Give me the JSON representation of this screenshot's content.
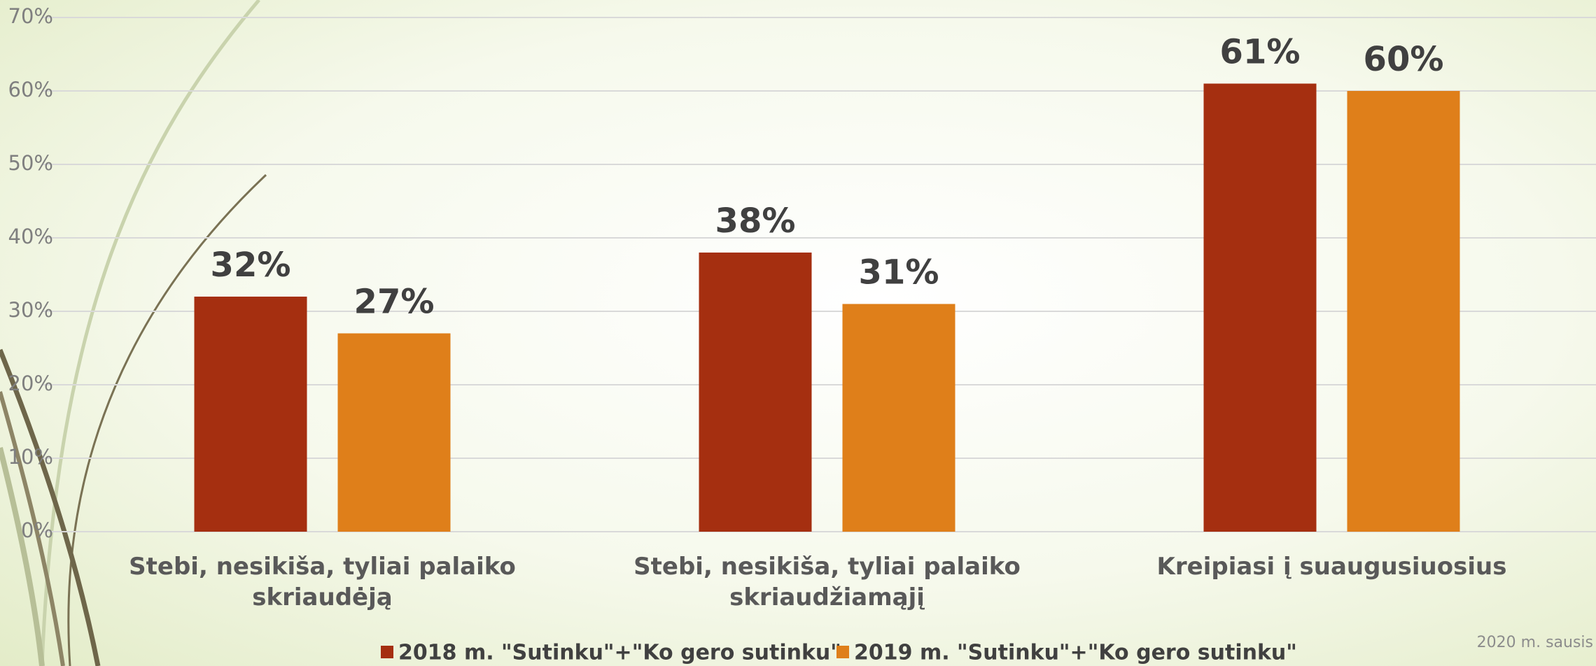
{
  "chart_data": {
    "type": "bar",
    "categories": [
      "Stebi, nesikiša, tyliai palaiko skriaudėją",
      "Stebi, nesikiša, tyliai palaiko skriaudžiamąjį",
      "Kreipiasi į suaugusiuosius"
    ],
    "series": [
      {
        "name": "2018 m. \"Sutinku\"+\"Ko gero sutinku\"",
        "color": "#a52f10",
        "values": [
          32,
          38,
          61
        ],
        "value_labels": [
          "32%",
          "38%",
          "61%"
        ]
      },
      {
        "name": "2019 m. \"Sutinku\"+\"Ko gero sutinku\"",
        "color": "#df7f1a",
        "values": [
          27,
          31,
          60
        ],
        "value_labels": [
          "27%",
          "31%",
          "60%"
        ]
      }
    ],
    "ylim": [
      0,
      70
    ],
    "yticks": [
      {
        "value": 0,
        "label": "0%"
      },
      {
        "value": 10,
        "label": "10%"
      },
      {
        "value": 20,
        "label": "20%"
      },
      {
        "value": 30,
        "label": "30%"
      },
      {
        "value": 40,
        "label": "40%"
      },
      {
        "value": 50,
        "label": "50%"
      },
      {
        "value": 60,
        "label": "60%"
      },
      {
        "value": 70,
        "label": "70%"
      }
    ],
    "grid": true,
    "legend": "bottom",
    "note": "2020 m. sausis"
  }
}
